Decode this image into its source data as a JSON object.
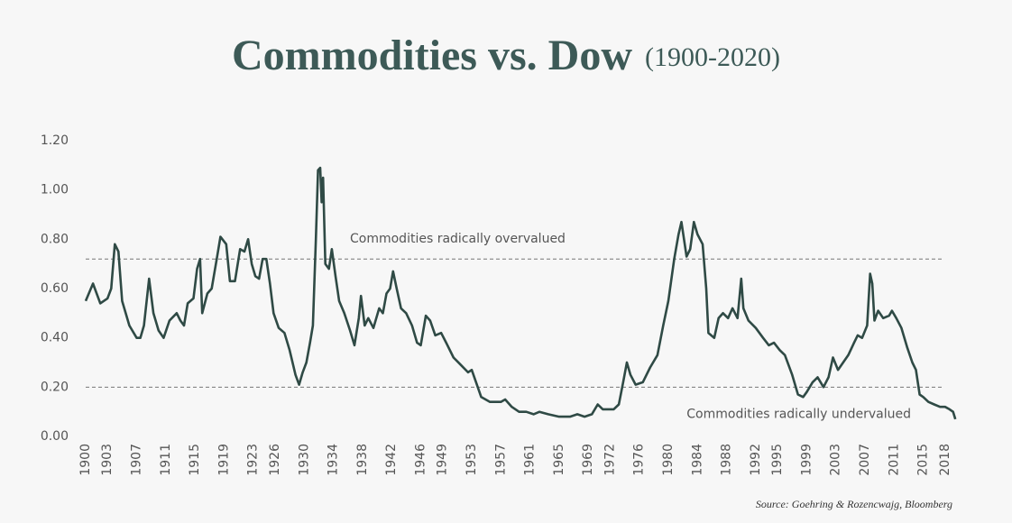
{
  "chart_data": {
    "type": "line",
    "title": "Commodities vs. Dow",
    "subtitle": "(1900-2020)",
    "source": "Source: Goehring & Rozencwajg, Bloomberg",
    "color": "#2f4a45",
    "x": [
      1900,
      1901,
      1902,
      1903,
      1903.5,
      1904,
      1904.5,
      1905,
      1906,
      1907,
      1907.5,
      1908,
      1908.7,
      1909.3,
      1910,
      1910.7,
      1911.5,
      1912.5,
      1913,
      1913.5,
      1914,
      1914.8,
      1915.3,
      1915.7,
      1916,
      1916.7,
      1917.3,
      1918,
      1918.5,
      1919.3,
      1919.8,
      1920.5,
      1921.2,
      1921.8,
      1922.3,
      1922.8,
      1923.3,
      1923.8,
      1924.3,
      1924.8,
      1925.3,
      1925.8,
      1926.5,
      1927.3,
      1928,
      1928.8,
      1929.3,
      1929.8,
      1930.3,
      1930.8,
      1931.2,
      1931.6,
      1931.9,
      1932.2,
      1932.4,
      1932.6,
      1932.9,
      1933.4,
      1933.8,
      1934.3,
      1934.8,
      1935.5,
      1936.3,
      1936.9,
      1937.5,
      1937.8,
      1938.3,
      1938.8,
      1939.5,
      1940.3,
      1940.8,
      1941.3,
      1941.8,
      1942.2,
      1942.7,
      1943.3,
      1944,
      1944.8,
      1945.5,
      1946,
      1946.7,
      1947.3,
      1948,
      1948.8,
      1949.5,
      1950.5,
      1951.5,
      1952.5,
      1953,
      1953.6,
      1954.3,
      1955.5,
      1957,
      1957.6,
      1958.5,
      1959.5,
      1960.5,
      1961.5,
      1962.3,
      1963.5,
      1965,
      1966.5,
      1967.5,
      1968.5,
      1969.5,
      1970.3,
      1971,
      1972.5,
      1973.2,
      1973.8,
      1974.3,
      1974.8,
      1975.5,
      1976.5,
      1977.5,
      1978.5,
      1979.3,
      1980,
      1980.8,
      1981.4,
      1981.8,
      1982.5,
      1983,
      1983.5,
      1984,
      1984.7,
      1985.2,
      1985.5,
      1986.3,
      1986.9,
      1987.5,
      1988.2,
      1988.8,
      1989.5,
      1990,
      1990.3,
      1991,
      1992,
      1993,
      1993.8,
      1994.5,
      1995.3,
      1996,
      1997,
      1997.8,
      1998.5,
      1999,
      1999.8,
      2000.5,
      2001.3,
      2002,
      2002.6,
      2003.3,
      2004,
      2004.7,
      2005.5,
      2006,
      2006.6,
      2007.3,
      2007.7,
      2008,
      2008.3,
      2008.8,
      2009.5,
      2010.3,
      2010.7,
      2011.3,
      2012,
      2012.8,
      2013.5,
      2014,
      2014.5,
      2015,
      2015.7,
      2016.5,
      2017.3,
      2018,
      2018.6,
      2019.1,
      2019.4
    ],
    "values": [
      0.55,
      0.62,
      0.54,
      0.56,
      0.6,
      0.78,
      0.75,
      0.55,
      0.45,
      0.4,
      0.4,
      0.45,
      0.64,
      0.5,
      0.43,
      0.4,
      0.47,
      0.5,
      0.47,
      0.45,
      0.54,
      0.56,
      0.68,
      0.72,
      0.5,
      0.58,
      0.6,
      0.72,
      0.81,
      0.78,
      0.63,
      0.63,
      0.76,
      0.75,
      0.8,
      0.7,
      0.65,
      0.64,
      0.72,
      0.72,
      0.62,
      0.5,
      0.44,
      0.42,
      0.35,
      0.25,
      0.21,
      0.26,
      0.3,
      0.38,
      0.45,
      0.8,
      1.08,
      1.09,
      0.95,
      1.05,
      0.7,
      0.68,
      0.76,
      0.65,
      0.55,
      0.5,
      0.43,
      0.37,
      0.48,
      0.57,
      0.45,
      0.48,
      0.44,
      0.52,
      0.5,
      0.58,
      0.6,
      0.67,
      0.6,
      0.52,
      0.5,
      0.45,
      0.38,
      0.37,
      0.49,
      0.47,
      0.41,
      0.42,
      0.38,
      0.32,
      0.29,
      0.26,
      0.27,
      0.22,
      0.16,
      0.14,
      0.14,
      0.15,
      0.12,
      0.1,
      0.1,
      0.09,
      0.1,
      0.09,
      0.08,
      0.08,
      0.09,
      0.08,
      0.09,
      0.13,
      0.11,
      0.11,
      0.13,
      0.22,
      0.3,
      0.25,
      0.21,
      0.22,
      0.28,
      0.33,
      0.45,
      0.55,
      0.72,
      0.82,
      0.87,
      0.73,
      0.76,
      0.87,
      0.82,
      0.78,
      0.6,
      0.42,
      0.4,
      0.48,
      0.5,
      0.48,
      0.52,
      0.48,
      0.64,
      0.52,
      0.47,
      0.44,
      0.4,
      0.37,
      0.38,
      0.35,
      0.33,
      0.25,
      0.17,
      0.16,
      0.18,
      0.22,
      0.24,
      0.2,
      0.24,
      0.32,
      0.27,
      0.3,
      0.33,
      0.38,
      0.41,
      0.4,
      0.45,
      0.66,
      0.62,
      0.47,
      0.51,
      0.48,
      0.49,
      0.51,
      0.48,
      0.44,
      0.36,
      0.3,
      0.27,
      0.17,
      0.16,
      0.14,
      0.13,
      0.12,
      0.12,
      0.11,
      0.1,
      0.07
    ],
    "xlim": [
      1900,
      2020
    ],
    "xticks": [
      1900,
      1903,
      1907,
      1911,
      1915,
      1919,
      1923,
      1926,
      1930,
      1934,
      1938,
      1942,
      1946,
      1949,
      1953,
      1957,
      1961,
      1965,
      1969,
      1972,
      1976,
      1980,
      1984,
      1988,
      1992,
      1995,
      1999,
      2003,
      2007,
      2011,
      2015,
      2018
    ],
    "ylim": [
      0,
      1.2
    ],
    "yticks": [
      {
        "value": 0,
        "label": "0.00"
      },
      {
        "value": 0.2,
        "label": "0.20"
      },
      {
        "value": 0.4,
        "label": "0.40"
      },
      {
        "value": 0.6,
        "label": "0.60"
      },
      {
        "value": 0.8,
        "label": "0.80"
      },
      {
        "value": 1.0,
        "label": "1.00"
      },
      {
        "value": 1.2,
        "label": "1.20"
      }
    ],
    "grid": false,
    "reference_lines": [
      {
        "value": 0.72,
        "label": "Commodities radically overvalued"
      },
      {
        "value": 0.2,
        "label": "Commodities radically undervalued"
      }
    ]
  }
}
